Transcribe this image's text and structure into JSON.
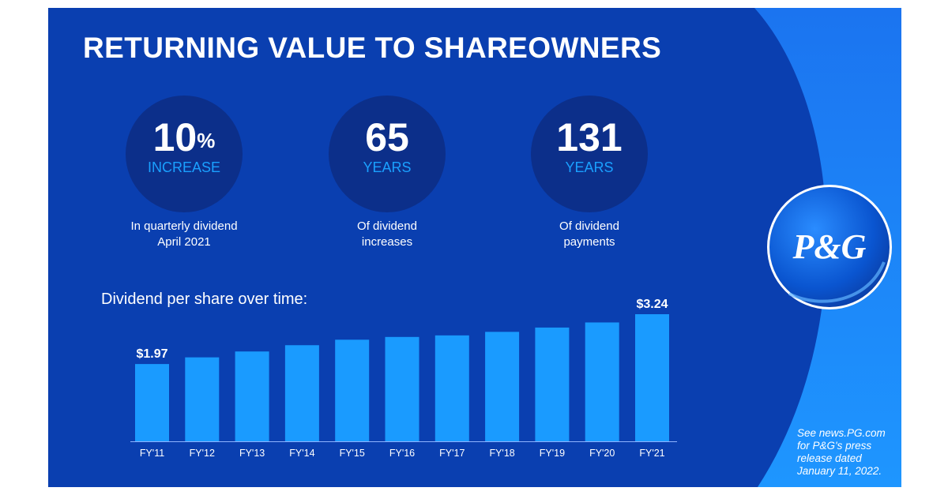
{
  "title": "RETURNING VALUE TO SHAREOWNERS",
  "stats": [
    {
      "number": "10",
      "sup": "%",
      "unit": "INCREASE",
      "caption": [
        "In quarterly dividend",
        "April 2021"
      ]
    },
    {
      "number": "65",
      "sup": "",
      "unit": "YEARS",
      "caption": [
        "Of dividend",
        "increases"
      ]
    },
    {
      "number": "131",
      "sup": "",
      "unit": "YEARS",
      "caption": [
        "Of dividend",
        "payments"
      ]
    }
  ],
  "chart_data": {
    "type": "bar",
    "title": "Dividend per share over time:",
    "categories": [
      "FY'11",
      "FY'12",
      "FY'13",
      "FY'14",
      "FY'15",
      "FY'16",
      "FY'17",
      "FY'18",
      "FY'19",
      "FY'20",
      "FY'21"
    ],
    "values": [
      1.97,
      2.14,
      2.29,
      2.45,
      2.59,
      2.66,
      2.7,
      2.79,
      2.9,
      3.03,
      3.24
    ],
    "data_labels": [
      {
        "index": 0,
        "text": "$1.97"
      },
      {
        "index": 10,
        "text": "$3.24"
      }
    ],
    "xlabel": "",
    "ylabel": "",
    "ylim": [
      0,
      3.24
    ],
    "grid": false,
    "bar_color": "#1a9bff",
    "axis_color": "#8fb3ff"
  },
  "footnote": [
    "See news.PG.com",
    "for P&G's press",
    "release dated",
    "January 11, 2022."
  ],
  "logo": {
    "text": "P&G"
  },
  "colors": {
    "background": "#0a3fb0",
    "accent": "#1a9bff",
    "circle": "#0c2f8a",
    "side_band": "#1e8fff"
  }
}
